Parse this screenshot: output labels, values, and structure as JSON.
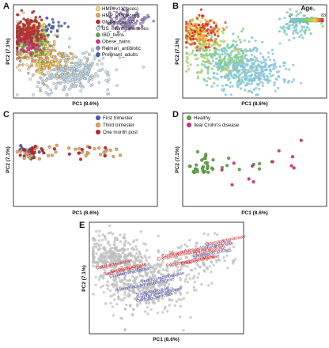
{
  "colors": {
    "red": "#d7191c",
    "pink": "#e7298a",
    "orange": "#f4a259",
    "yellow": "#ffe45c",
    "green": "#5aae3a",
    "lightblue": "#c6e2ef",
    "purple": "#9a7cc8",
    "blue": "#3b5bcc",
    "grey": "#bfbfbf",
    "taxonRed": "#d7191c",
    "taxonBlue": "#4a4fb0"
  },
  "chart_data": [
    {
      "panel": "A",
      "type": "scatter",
      "xlabel": "PC1 (8.6%)",
      "ylabel": "PC2 (7.1%)",
      "xlim": [
        0,
        1
      ],
      "ylim": [
        0,
        1
      ],
      "legend_position": "top-right",
      "series": [
        {
          "name": "HMP_v13(feces)",
          "color": "#ffe45c",
          "clusters": [
            {
              "x": 0.12,
              "y": 0.68,
              "sx": 0.07,
              "sy": 0.09,
              "n": 200
            },
            {
              "x": 0.2,
              "y": 0.4,
              "sx": 0.08,
              "sy": 0.07,
              "n": 60
            }
          ]
        },
        {
          "name": "HMP_v35(feces)",
          "color": "#f4a259",
          "clusters": [
            {
              "x": 0.2,
              "y": 0.42,
              "sx": 0.1,
              "sy": 0.09,
              "n": 160
            }
          ]
        },
        {
          "name": "Global_gut: US",
          "color": "#d7191c",
          "clusters": [
            {
              "x": 0.08,
              "y": 0.72,
              "sx": 0.06,
              "sy": 0.08,
              "n": 170
            }
          ]
        },
        {
          "name": "US_infant_timeseries",
          "color": "#c6e2ef",
          "clusters": [
            {
              "x": 0.45,
              "y": 0.28,
              "sx": 0.12,
              "sy": 0.11,
              "n": 220
            },
            {
              "x": 0.3,
              "y": 0.2,
              "sx": 0.1,
              "sy": 0.08,
              "n": 80
            }
          ]
        },
        {
          "name": "IBD_twins",
          "color": "#5aae3a",
          "clusters": [
            {
              "x": 0.1,
              "y": 0.6,
              "sx": 0.06,
              "sy": 0.08,
              "n": 90
            }
          ]
        },
        {
          "name": "Obese_twins",
          "color": "#e7298a",
          "clusters": [
            {
              "x": 0.1,
              "y": 0.55,
              "sx": 0.05,
              "sy": 0.06,
              "n": 40
            }
          ]
        },
        {
          "name": "Relman_antibiotic",
          "color": "#9a7cc8",
          "clusters": [
            {
              "x": 0.8,
              "y": 0.85,
              "sx": 0.07,
              "sy": 0.06,
              "n": 90
            }
          ]
        },
        {
          "name": "Pregnant_adults",
          "color": "#3b5bcc",
          "clusters": [
            {
              "x": 0.25,
              "y": 0.78,
              "sx": 0.05,
              "sy": 0.05,
              "n": 25
            }
          ]
        }
      ]
    },
    {
      "panel": "B",
      "type": "scatter",
      "xlabel": "PC1 (8.6%)",
      "ylabel": "PC2 (7.1%)",
      "xlim": [
        0,
        1
      ],
      "ylim": [
        0,
        1
      ],
      "colorbar": {
        "title": "Age",
        "min": 0,
        "max": 83
      },
      "series": [
        {
          "name": "",
          "age": 70,
          "clusters": [
            {
              "x": 0.1,
              "y": 0.7,
              "sx": 0.07,
              "sy": 0.09,
              "n": 260
            }
          ]
        },
        {
          "name": "",
          "age": 35,
          "clusters": [
            {
              "x": 0.25,
              "y": 0.45,
              "sx": 0.12,
              "sy": 0.12,
              "n": 250
            }
          ]
        },
        {
          "name": "",
          "age": 10,
          "clusters": [
            {
              "x": 0.4,
              "y": 0.3,
              "sx": 0.13,
              "sy": 0.12,
              "n": 260
            }
          ]
        },
        {
          "name": "",
          "age": 20,
          "clusters": [
            {
              "x": 0.8,
              "y": 0.8,
              "sx": 0.08,
              "sy": 0.08,
              "n": 80
            }
          ]
        },
        {
          "name": "",
          "age": 0,
          "clusters": [
            {
              "x": 0.55,
              "y": 0.25,
              "sx": 0.1,
              "sy": 0.08,
              "n": 120
            }
          ]
        }
      ]
    },
    {
      "panel": "C",
      "type": "scatter",
      "xlabel": "PC1 (8.6%)",
      "ylabel": "PC2 (7.1%)",
      "xlim": [
        0,
        1
      ],
      "ylim": [
        0,
        1
      ],
      "legend_position": "top-right",
      "series": [
        {
          "name": "First trimester",
          "color": "#3b5bcc",
          "clusters": [
            {
              "x": 0.1,
              "y": 0.58,
              "sx": 0.04,
              "sy": 0.04,
              "n": 14
            }
          ]
        },
        {
          "name": "Third trimester",
          "color": "#f4a259",
          "clusters": [
            {
              "x": 0.12,
              "y": 0.58,
              "sx": 0.06,
              "sy": 0.04,
              "n": 26
            },
            {
              "x": 0.55,
              "y": 0.58,
              "sx": 0.12,
              "sy": 0.04,
              "n": 22
            }
          ]
        },
        {
          "name": "One month post",
          "color": "#d7191c",
          "clusters": [
            {
              "x": 0.12,
              "y": 0.58,
              "sx": 0.06,
              "sy": 0.04,
              "n": 14
            },
            {
              "x": 0.5,
              "y": 0.57,
              "sx": 0.1,
              "sy": 0.04,
              "n": 8
            }
          ]
        }
      ]
    },
    {
      "panel": "D",
      "type": "scatter",
      "xlabel": "PC1 (8.6%)",
      "ylabel": "PC2 (7.1%)",
      "xlim": [
        0,
        1
      ],
      "ylim": [
        0,
        1
      ],
      "legend_position": "top-left",
      "series": [
        {
          "name": "Healthy",
          "color": "#5aae3a",
          "clusters": [
            {
              "x": 0.12,
              "y": 0.42,
              "sx": 0.05,
              "sy": 0.06,
              "n": 30
            },
            {
              "x": 0.45,
              "y": 0.45,
              "sx": 0.15,
              "sy": 0.05,
              "n": 8
            }
          ]
        },
        {
          "name": "Ileal Crohn's disease",
          "color": "#e7298a",
          "clusters": [
            {
              "x": 0.35,
              "y": 0.4,
              "sx": 0.1,
              "sy": 0.06,
              "n": 6
            },
            {
              "x": 0.7,
              "y": 0.5,
              "sx": 0.1,
              "sy": 0.12,
              "n": 6
            }
          ]
        }
      ]
    },
    {
      "panel": "E",
      "type": "scatter",
      "xlabel": "PC1 (8.6%)",
      "ylabel": "PC2 (7.1%)",
      "xlim": [
        0,
        1
      ],
      "ylim": [
        0,
        1
      ],
      "background": {
        "color": "#bfbfbf",
        "clusters": [
          {
            "x": 0.15,
            "y": 0.7,
            "sx": 0.09,
            "sy": 0.1,
            "n": 320
          },
          {
            "x": 0.35,
            "y": 0.45,
            "sx": 0.15,
            "sy": 0.13,
            "n": 420
          },
          {
            "x": 0.7,
            "y": 0.7,
            "sx": 0.12,
            "sy": 0.1,
            "n": 130
          }
        ]
      },
      "annotations": [
        {
          "text": "Enterobacteriaceae",
          "x": 0.76,
          "y": 0.8,
          "color": "red"
        },
        {
          "text": "Veillonellaceae",
          "x": 0.73,
          "y": 0.77,
          "color": "blue"
        },
        {
          "text": "Streptococcaceae",
          "x": 0.7,
          "y": 0.74,
          "color": "red"
        },
        {
          "text": "Clostridiaceae",
          "x": 0.7,
          "y": 0.71,
          "color": "red"
        },
        {
          "text": "Enterococcaceae",
          "x": 0.68,
          "y": 0.68,
          "color": "blue"
        },
        {
          "text": "Bifidobacteriaceae",
          "x": 0.6,
          "y": 0.62,
          "color": "red"
        },
        {
          "text": "Coriobacteriaceae",
          "x": 0.47,
          "y": 0.69,
          "color": "red"
        },
        {
          "text": "Erysipelotrichaceae",
          "x": 0.44,
          "y": 0.66,
          "color": "red"
        },
        {
          "text": "Peptostreptococcaceae",
          "x": 0.5,
          "y": 0.6,
          "color": "red"
        },
        {
          "text": "Catabacteriaceae",
          "x": 0.03,
          "y": 0.58,
          "color": "red"
        },
        {
          "text": "Lachnospiraceae",
          "x": 0.13,
          "y": 0.55,
          "color": "red"
        },
        {
          "text": "Ruminococcaceae",
          "x": 0.08,
          "y": 0.52,
          "color": "red"
        },
        {
          "text": "Christensenellaceae",
          "x": 0.12,
          "y": 0.5,
          "color": "blue"
        },
        {
          "text": "Verrucomicrobiaceae",
          "x": 0.33,
          "y": 0.45,
          "color": "blue"
        },
        {
          "text": "Prevotellaceae",
          "x": 0.35,
          "y": 0.42,
          "color": "blue"
        },
        {
          "text": "Rikenellaceae",
          "x": 0.16,
          "y": 0.37,
          "color": "blue"
        },
        {
          "text": "Bacteroidaceae",
          "x": 0.3,
          "y": 0.33,
          "color": "blue"
        },
        {
          "text": "Porphyromonadaceae",
          "x": 0.3,
          "y": 0.3,
          "color": "blue"
        },
        {
          "text": "Odoribacteraceae",
          "x": 0.3,
          "y": 0.27,
          "color": "blue"
        }
      ]
    }
  ]
}
